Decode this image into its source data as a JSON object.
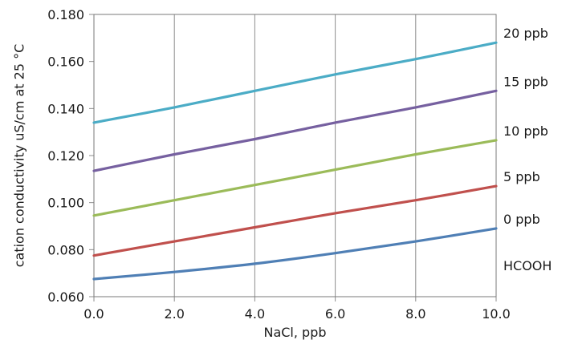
{
  "chart_data": {
    "type": "line",
    "title": "",
    "xlabel": "NaCl, ppb",
    "ylabel": "cation conductivity uS/cm at 25 °C",
    "xlim": [
      0,
      10
    ],
    "ylim": [
      0.06,
      0.18
    ],
    "x_ticks": [
      0,
      2,
      4,
      6,
      8,
      10
    ],
    "x_tick_labels": [
      "0.0",
      "2.0",
      "4.0",
      "6.0",
      "8.0",
      "10.0"
    ],
    "y_ticks": [
      0.06,
      0.08,
      0.1,
      0.12,
      0.14,
      0.16,
      0.18
    ],
    "y_tick_labels": [
      "0.060",
      "0.080",
      "0.100",
      "0.120",
      "0.140",
      "0.160",
      "0.180"
    ],
    "grid": "vertical",
    "legend_title": "HCOOH",
    "x": [
      0,
      2,
      4,
      6,
      8,
      10
    ],
    "series": [
      {
        "name": "0 ppb",
        "color": "#4f7fb5",
        "values": [
          0.0675,
          0.0705,
          0.074,
          0.0785,
          0.0835,
          0.089
        ]
      },
      {
        "name": "5 ppb",
        "color": "#c0504d",
        "values": [
          0.0775,
          0.0835,
          0.0895,
          0.0955,
          0.101,
          0.107
        ]
      },
      {
        "name": "10 ppb",
        "color": "#9bbb59",
        "values": [
          0.0945,
          0.101,
          0.1075,
          0.114,
          0.1205,
          0.1265
        ]
      },
      {
        "name": "15 ppb",
        "color": "#7660a0",
        "values": [
          0.1135,
          0.1205,
          0.127,
          0.134,
          0.1405,
          0.1475
        ]
      },
      {
        "name": "20 ppb",
        "color": "#4bacc6",
        "values": [
          0.134,
          0.1405,
          0.1475,
          0.1545,
          0.161,
          0.168
        ]
      }
    ]
  }
}
